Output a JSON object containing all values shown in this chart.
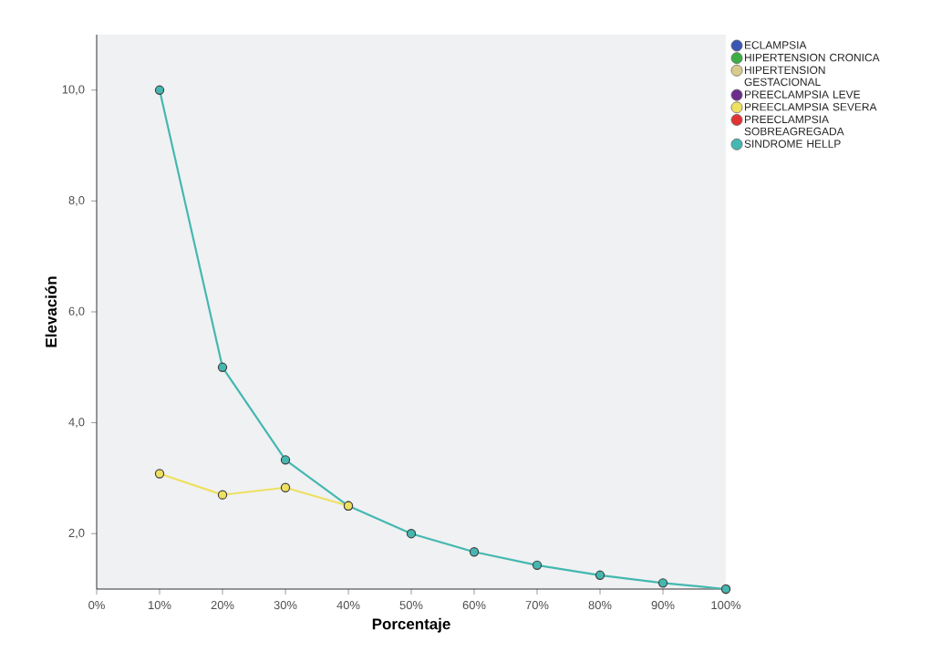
{
  "chart_data": {
    "type": "line",
    "xlabel": "Porcentaje",
    "ylabel": "Elevación",
    "x": [
      10,
      20,
      30,
      40,
      50,
      60,
      70,
      80,
      90,
      100
    ],
    "xlim": [
      0,
      100
    ],
    "ylim": [
      1,
      11
    ],
    "xticks": [
      {
        "value": 0,
        "label": "0%"
      },
      {
        "value": 10,
        "label": "10%"
      },
      {
        "value": 20,
        "label": "20%"
      },
      {
        "value": 30,
        "label": "30%"
      },
      {
        "value": 40,
        "label": "40%"
      },
      {
        "value": 50,
        "label": "50%"
      },
      {
        "value": 60,
        "label": "60%"
      },
      {
        "value": 70,
        "label": "70%"
      },
      {
        "value": 80,
        "label": "80%"
      },
      {
        "value": 90,
        "label": "90%"
      },
      {
        "value": 100,
        "label": "100%"
      }
    ],
    "yticks": [
      {
        "value": 2,
        "label": "2,0"
      },
      {
        "value": 4,
        "label": "4,0"
      },
      {
        "value": 6,
        "label": "6,0"
      },
      {
        "value": 8,
        "label": "8,0"
      },
      {
        "value": 10,
        "label": "10,0"
      }
    ],
    "marker": "circle",
    "legend": "right",
    "grid": false,
    "series": [
      {
        "name": "ECLAMPSIA",
        "color": "#3a55b4",
        "values": [
          null,
          null,
          null,
          null,
          null,
          null,
          null,
          null,
          null,
          null
        ]
      },
      {
        "name": "HIPERTENSION CRONICA",
        "color": "#3cae44",
        "values": [
          null,
          null,
          null,
          null,
          null,
          null,
          null,
          null,
          null,
          null
        ]
      },
      {
        "name": "HIPERTENSION GESTACIONAL",
        "color": "#d8cc8c",
        "values": [
          null,
          null,
          null,
          null,
          null,
          null,
          null,
          null,
          null,
          null
        ]
      },
      {
        "name": "PREECLAMPSIA LEVE",
        "color": "#6c2c8c",
        "values": [
          null,
          null,
          null,
          null,
          null,
          null,
          null,
          null,
          null,
          null
        ]
      },
      {
        "name": "PREECLAMPSIA SEVERA",
        "color": "#eee060",
        "values": [
          3.08,
          2.7,
          2.83,
          2.5,
          null,
          null,
          null,
          null,
          null,
          null
        ]
      },
      {
        "name": "PREECLAMPSIA SOBREAGREGADA",
        "color": "#e03434",
        "values": [
          null,
          null,
          null,
          null,
          null,
          null,
          null,
          null,
          null,
          null
        ]
      },
      {
        "name": "SINDROME HELLP",
        "color": "#44b8b0",
        "values": [
          10.0,
          5.0,
          3.33,
          2.5,
          2.0,
          1.67,
          1.43,
          1.25,
          1.11,
          1.0
        ]
      }
    ]
  }
}
